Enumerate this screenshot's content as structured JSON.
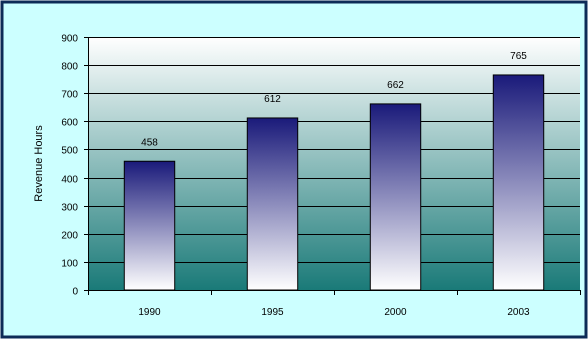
{
  "chart_data": {
    "type": "bar",
    "categories": [
      "1990",
      "1995",
      "2000",
      "2003"
    ],
    "values": [
      458,
      612,
      662,
      765
    ],
    "data_labels": [
      "458",
      "612",
      "662",
      "765"
    ],
    "title": "",
    "xlabel": "",
    "ylabel": "Revenue Hours",
    "ylim": [
      0,
      900
    ],
    "yticks": [
      0,
      100,
      200,
      300,
      400,
      500,
      600,
      700,
      800,
      900
    ],
    "grid": true,
    "legend": "none"
  },
  "colors": {
    "frame_border": "#0d2b57",
    "frame_background": "#ccffff",
    "plot_top": "#ffffff",
    "plot_bottom": "#1a7a78",
    "bar_top": "#1a1a7a",
    "bar_bottom": "#ffffff",
    "bar_outline": "#000000",
    "gridline": "#000000"
  }
}
